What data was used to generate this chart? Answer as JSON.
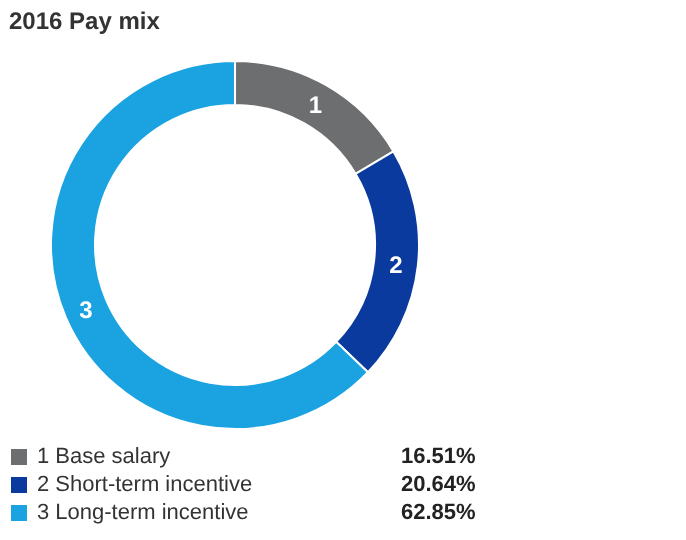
{
  "chart_data": {
    "type": "donut",
    "title": "2016 Pay mix",
    "categories": [
      "1 Base salary",
      "2 Short-term incentive",
      "3 Long-term incentive"
    ],
    "values": [
      16.51,
      20.64,
      62.85
    ],
    "colors": [
      "#6d6e70",
      "#0b3a9e",
      "#1aa3e0"
    ],
    "value_labels": [
      "16.51%",
      "20.64%",
      "62.85%"
    ],
    "annotations": [
      {
        "text": "1",
        "x": "1 Base salary"
      },
      {
        "text": "2",
        "x": "2 Short-term incentive"
      },
      {
        "text": "3",
        "x": "3 Long-term incentive"
      }
    ],
    "legend": "bottom"
  }
}
